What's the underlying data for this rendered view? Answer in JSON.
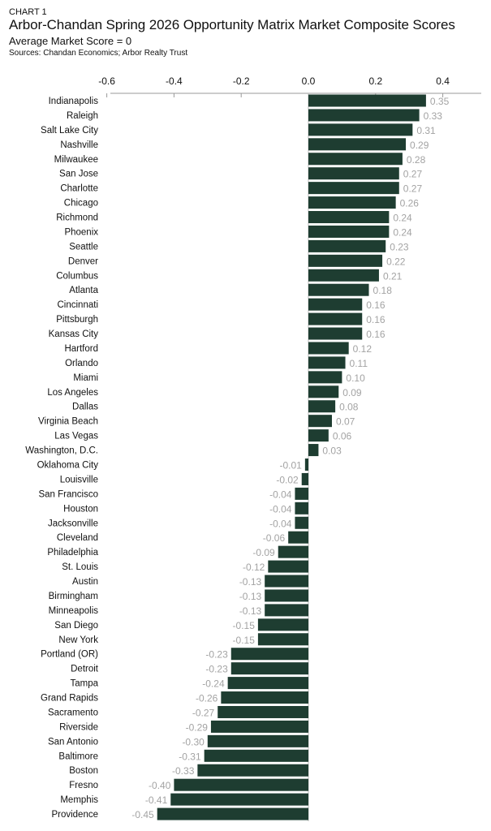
{
  "chart_data": {
    "type": "bar",
    "orientation": "horizontal",
    "kicker": "CHART 1",
    "title": "Arbor-Chandan Spring 2026 Opportunity Matrix Market Composite Scores",
    "subtitle": "Average Market Score = 0",
    "source": "Sources: Chandan Economics; Arbor Realty Trust",
    "xlim": [
      -0.6,
      0.5
    ],
    "xticks": [
      "-0.6",
      "-0.4",
      "-0.2",
      "0.0",
      "0.2",
      "0.4"
    ],
    "xtick_values": [
      -0.6,
      -0.4,
      -0.2,
      0,
      0.2,
      0.4
    ],
    "axis_position": "top",
    "grid": false,
    "bar_color": "#1e3d31",
    "label_color": "#a3a3a3",
    "categories": [
      "Indianapolis",
      "Raleigh",
      "Salt Lake City",
      "Nashville",
      "Milwaukee",
      "San Jose",
      "Charlotte",
      "Chicago",
      "Richmond",
      "Phoenix",
      "Seattle",
      "Denver",
      "Columbus",
      "Atlanta",
      "Cincinnati",
      "Pittsburgh",
      "Kansas City",
      "Hartford",
      "Orlando",
      "Miami",
      "Los Angeles",
      "Dallas",
      "Virginia Beach",
      "Las Vegas",
      "Washington, D.C.",
      "Oklahoma City",
      "Louisville",
      "San Francisco",
      "Houston",
      "Jacksonville",
      "Cleveland",
      "Philadelphia",
      "St. Louis",
      "Austin",
      "Birmingham",
      "Minneapolis",
      "San Diego",
      "New York",
      "Portland (OR)",
      "Detroit",
      "Tampa",
      "Grand Rapids",
      "Sacramento",
      "Riverside",
      "San Antonio",
      "Baltimore",
      "Boston",
      "Fresno",
      "Memphis",
      "Providence"
    ],
    "values": [
      0.35,
      0.33,
      0.31,
      0.29,
      0.28,
      0.27,
      0.27,
      0.26,
      0.24,
      0.24,
      0.23,
      0.22,
      0.21,
      0.18,
      0.16,
      0.16,
      0.16,
      0.12,
      0.11,
      0.1,
      0.09,
      0.08,
      0.07,
      0.06,
      0.03,
      -0.01,
      -0.02,
      -0.04,
      -0.04,
      -0.04,
      -0.06,
      -0.09,
      -0.12,
      -0.13,
      -0.13,
      -0.13,
      -0.15,
      -0.15,
      -0.23,
      -0.23,
      -0.24,
      -0.26,
      -0.27,
      -0.29,
      -0.3,
      -0.31,
      -0.33,
      -0.4,
      -0.41,
      -0.45
    ],
    "value_labels": [
      "0.35",
      "0.33",
      "0.31",
      "0.29",
      "0.28",
      "0.27",
      "0.27",
      "0.26",
      "0.24",
      "0.24",
      "0.23",
      "0.22",
      "0.21",
      "0.18",
      "0.16",
      "0.16",
      "0.16",
      "0.12",
      "0.11",
      "0.10",
      "0.09",
      "0.08",
      "0.07",
      "0.06",
      "0.03",
      "-0.01",
      "-0.02",
      "-0.04",
      "-0.04",
      "-0.04",
      "-0.06",
      "-0.09",
      "-0.12",
      "-0.13",
      "-0.13",
      "-0.13",
      "-0.15",
      "-0.15",
      "-0.23",
      "-0.23",
      "-0.24",
      "-0.26",
      "-0.27",
      "-0.29",
      "-0.30",
      "-0.31",
      "-0.33",
      "-0.40",
      "-0.41",
      "-0.45"
    ]
  }
}
